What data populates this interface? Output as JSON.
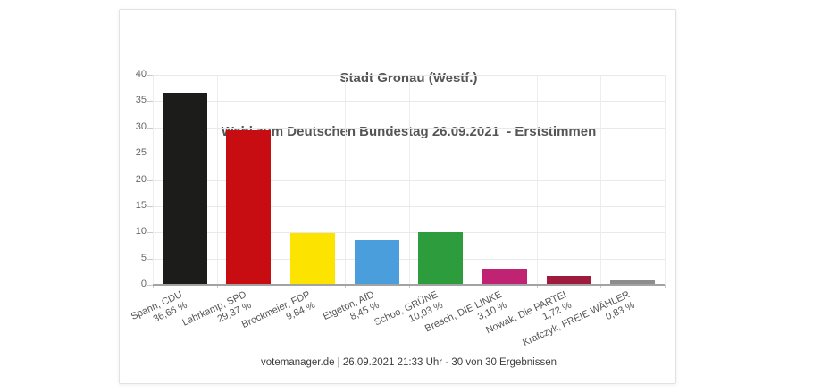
{
  "card": {
    "footer": "votemanager.de | 26.09.2021 21:33 Uhr - 30 von 30 Ergebnissen"
  },
  "chart_data": {
    "type": "bar",
    "title": "Stadt Gronau (Westf.)",
    "subtitle": "Wahl zum Deutschen Bundestag 26.09.2021  - Erststimmen",
    "categories": [
      "Spahn, CDU",
      "Lahrkamp, SPD",
      "Brockmeier, FDP",
      "Etgeton, AfD",
      "Schoo, GRÜNE",
      "Bresch, DIE LINKE",
      "Nowak, Die PARTEI",
      "Krafczyk, FREIE WÄHLER"
    ],
    "values": [
      36.66,
      29.37,
      9.84,
      8.45,
      10.03,
      3.1,
      1.72,
      0.83
    ],
    "value_labels": [
      "36,66 %",
      "29,37 %",
      "9,84 %",
      "8,45 %",
      "10,03 %",
      "3,10 %",
      "1,72 %",
      "0,83 %"
    ],
    "bar_colors": [
      "#1c1c1a",
      "#c70c12",
      "#fce400",
      "#4a9edb",
      "#2d9c3c",
      "#bf2372",
      "#9e1b3e",
      "#8d8d8d"
    ],
    "xlabel": "",
    "ylabel": "",
    "ylim": [
      0,
      40
    ],
    "yticks": [
      0,
      5,
      10,
      15,
      20,
      25,
      30,
      35,
      40
    ],
    "grid": true,
    "legend": "none"
  }
}
